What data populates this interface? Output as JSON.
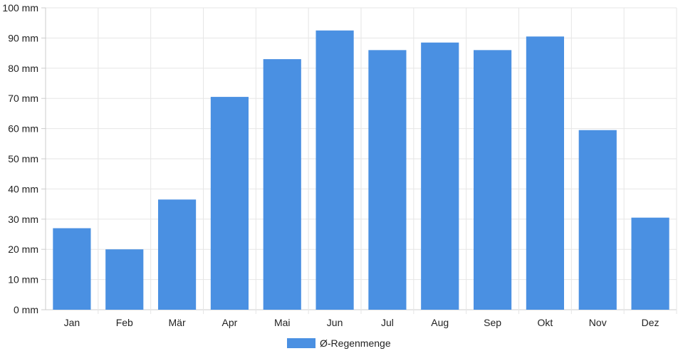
{
  "chart_data": {
    "type": "bar",
    "categories": [
      "Jan",
      "Feb",
      "Mär",
      "Apr",
      "Mai",
      "Jun",
      "Jul",
      "Aug",
      "Sep",
      "Okt",
      "Nov",
      "Dez"
    ],
    "series": [
      {
        "name": "Ø-Regenmenge",
        "values": [
          27,
          20,
          36.5,
          70.5,
          83,
          92.5,
          86,
          88.5,
          86,
          90.5,
          59.5,
          30.5
        ],
        "color": "#4a90e2"
      }
    ],
    "y_ticks": [
      "0 mm",
      "10 mm",
      "20 mm",
      "30 mm",
      "40 mm",
      "50 mm",
      "60 mm",
      "70 mm",
      "80 mm",
      "90 mm",
      "100 mm"
    ],
    "ylim": [
      0,
      100
    ],
    "y_unit": "mm",
    "grid": true,
    "legend_position": "bottom-center",
    "colors": {
      "bar": "#4a90e2",
      "grid": "#e6e6e6",
      "axis": "#cccccc",
      "text": "#222222"
    }
  }
}
